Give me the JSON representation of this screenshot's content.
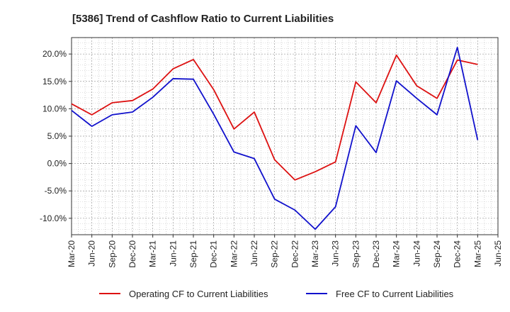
{
  "chart_data": {
    "type": "line",
    "title": "[5386]  Trend of Cashflow Ratio to Current Liabilities",
    "xlabel": "",
    "ylabel": "",
    "ylim": [
      -13,
      23
    ],
    "y_ticks": [
      -10,
      -5,
      0,
      5,
      10,
      15,
      20
    ],
    "y_tick_labels": [
      "-10.0%",
      "-5.0%",
      "0.0%",
      "5.0%",
      "10.0%",
      "15.0%",
      "20.0%"
    ],
    "categories": [
      "Mar-20",
      "Jun-20",
      "Sep-20",
      "Dec-20",
      "Mar-21",
      "Jun-21",
      "Sep-21",
      "Dec-21",
      "Mar-22",
      "Jun-22",
      "Sep-22",
      "Dec-22",
      "Mar-23",
      "Jun-23",
      "Sep-23",
      "Dec-23",
      "Mar-24",
      "Jun-24",
      "Sep-24",
      "Dec-24",
      "Mar-25",
      "Jun-25"
    ],
    "grid": true,
    "legend_position": "bottom",
    "series": [
      {
        "name": "Operating CF to Current Liabilities",
        "color": "#dd1111",
        "values": [
          10.9,
          8.9,
          11.1,
          11.5,
          13.6,
          17.3,
          19.0,
          13.5,
          6.3,
          9.4,
          0.7,
          -3.0,
          -1.5,
          0.3,
          14.9,
          11.1,
          19.8,
          14.2,
          11.9,
          18.9,
          18.1,
          null
        ]
      },
      {
        "name": "Free CF to Current Liabilities",
        "color": "#1111cc",
        "values": [
          9.7,
          6.8,
          8.9,
          9.4,
          12.1,
          15.5,
          15.4,
          9.0,
          2.1,
          0.9,
          -6.5,
          -8.5,
          -12.0,
          -7.9,
          6.9,
          2.0,
          15.1,
          11.9,
          8.9,
          21.2,
          4.3,
          null
        ]
      }
    ]
  }
}
